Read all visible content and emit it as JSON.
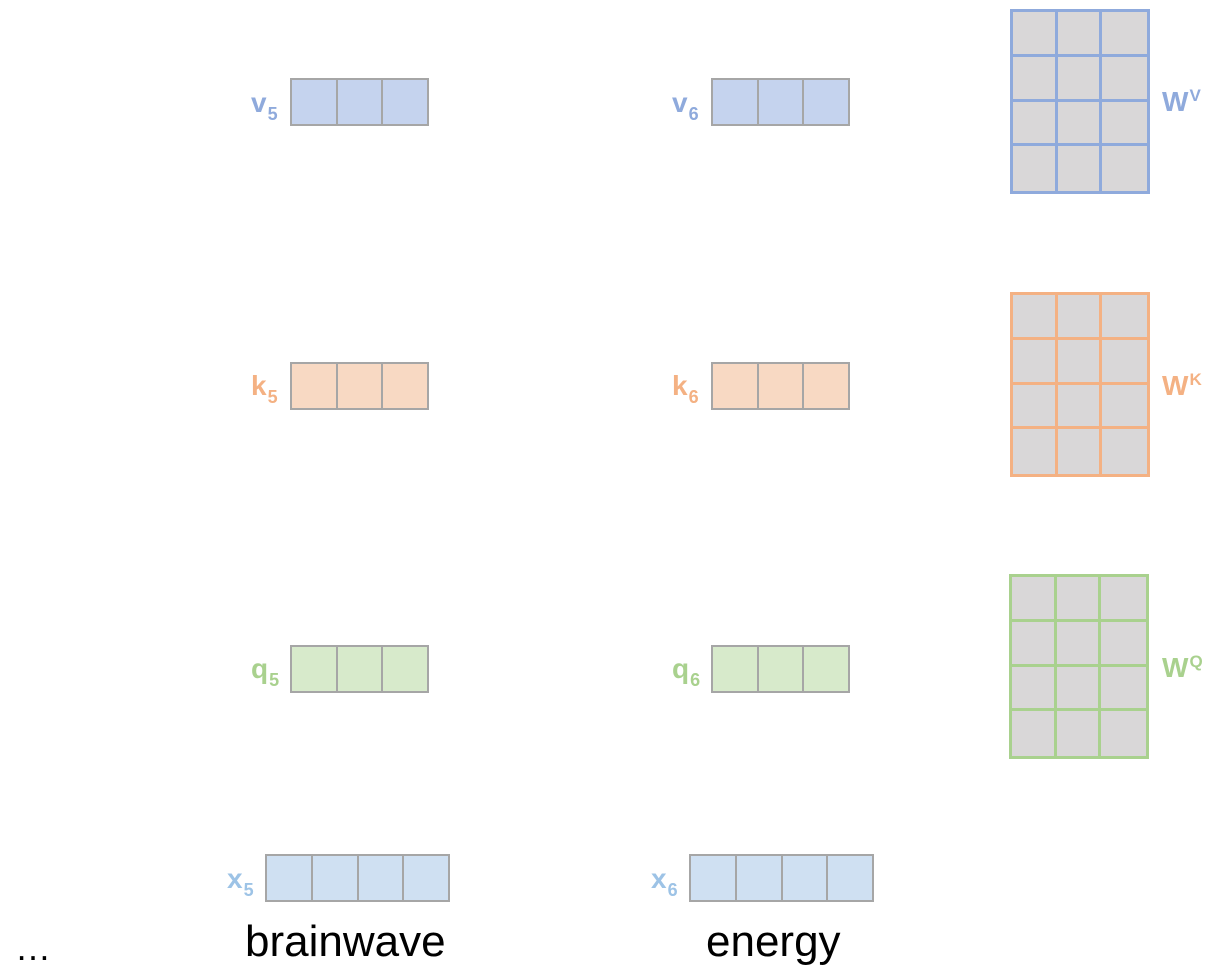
{
  "colors": {
    "v": "#8faadc",
    "v_fill": "#c5d3ee",
    "k": "#f4b183",
    "k_fill": "#f8d9c3",
    "q": "#a9d18e",
    "q_fill": "#d7eacb",
    "x": "#9dc3e6",
    "x_fill": "#cfe0f2",
    "cell_border": "#a6a6a6",
    "matrix_fill": "#d9d7d8"
  },
  "columns": [
    {
      "word": "brainwave",
      "v": {
        "base": "v",
        "sub": "5"
      },
      "k": {
        "base": "k",
        "sub": "5"
      },
      "q": {
        "base": "q",
        "sub": "5"
      },
      "x": {
        "base": "x",
        "sub": "5"
      }
    },
    {
      "word": "energy",
      "v": {
        "base": "v",
        "sub": "6"
      },
      "k": {
        "base": "k",
        "sub": "6"
      },
      "q": {
        "base": "q",
        "sub": "6"
      },
      "x": {
        "base": "x",
        "sub": "6"
      }
    }
  ],
  "matrices": {
    "v": {
      "base": "W",
      "sup": "V"
    },
    "k": {
      "base": "W",
      "sup": "K"
    },
    "q": {
      "base": "W",
      "sup": "Q"
    }
  },
  "ellipsis": "…"
}
